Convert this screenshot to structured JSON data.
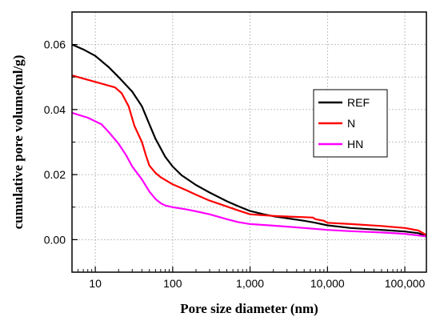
{
  "chart_data": {
    "type": "line",
    "title": "",
    "xlabel": "Pore size diameter (nm)",
    "ylabel": "cumulative pore volume(ml/g)",
    "x_scale": "log",
    "xlim": [
      5,
      190000
    ],
    "ylim": [
      -0.01,
      0.07
    ],
    "x_ticks": [
      {
        "value": 10,
        "label": "10"
      },
      {
        "value": 100,
        "label": "100"
      },
      {
        "value": 1000,
        "label": "1,000"
      },
      {
        "value": 10000,
        "label": "10,000"
      },
      {
        "value": 100000,
        "label": "100,000"
      }
    ],
    "y_ticks": [
      {
        "value": 0.0,
        "label": "0.00"
      },
      {
        "value": 0.02,
        "label": "0.02"
      },
      {
        "value": 0.04,
        "label": "0.04"
      },
      {
        "value": 0.06,
        "label": "0.06"
      }
    ],
    "grid": true,
    "legend_position": "right",
    "series": [
      {
        "name": "REF",
        "color": "#000000",
        "points": [
          [
            5,
            0.06
          ],
          [
            7,
            0.0585
          ],
          [
            10,
            0.0565
          ],
          [
            15,
            0.053
          ],
          [
            20,
            0.05
          ],
          [
            30,
            0.0455
          ],
          [
            40,
            0.041
          ],
          [
            50,
            0.0355
          ],
          [
            60,
            0.031
          ],
          [
            80,
            0.0255
          ],
          [
            100,
            0.0225
          ],
          [
            130,
            0.0198
          ],
          [
            200,
            0.0168
          ],
          [
            300,
            0.0145
          ],
          [
            500,
            0.0118
          ],
          [
            700,
            0.0103
          ],
          [
            1000,
            0.0088
          ],
          [
            1500,
            0.0078
          ],
          [
            2000,
            0.0072
          ],
          [
            3000,
            0.0066
          ],
          [
            5000,
            0.0058
          ],
          [
            7000,
            0.0052
          ],
          [
            10000,
            0.0044
          ],
          [
            20000,
            0.0036
          ],
          [
            50000,
            0.003
          ],
          [
            100000,
            0.0025
          ],
          [
            150000,
            0.002
          ],
          [
            190000,
            0.001
          ]
        ]
      },
      {
        "name": "N",
        "color": "#ff0000",
        "points": [
          [
            5,
            0.0505
          ],
          [
            10,
            0.0485
          ],
          [
            18,
            0.0468
          ],
          [
            22,
            0.045
          ],
          [
            27,
            0.041
          ],
          [
            32,
            0.035
          ],
          [
            40,
            0.03
          ],
          [
            45,
            0.026
          ],
          [
            50,
            0.0228
          ],
          [
            60,
            0.0205
          ],
          [
            70,
            0.0192
          ],
          [
            100,
            0.017
          ],
          [
            150,
            0.0152
          ],
          [
            200,
            0.0138
          ],
          [
            300,
            0.012
          ],
          [
            500,
            0.0102
          ],
          [
            700,
            0.009
          ],
          [
            1000,
            0.0078
          ],
          [
            1500,
            0.0075
          ],
          [
            2000,
            0.0073
          ],
          [
            3000,
            0.0071
          ],
          [
            5000,
            0.0069
          ],
          [
            6500,
            0.0068
          ],
          [
            7000,
            0.0063
          ],
          [
            9000,
            0.0058
          ],
          [
            10000,
            0.0052
          ],
          [
            20000,
            0.0048
          ],
          [
            50000,
            0.0042
          ],
          [
            100000,
            0.0036
          ],
          [
            150000,
            0.0028
          ],
          [
            190000,
            0.0014
          ]
        ]
      },
      {
        "name": "HN",
        "color": "#ff00ff",
        "points": [
          [
            5,
            0.039
          ],
          [
            8,
            0.0375
          ],
          [
            12,
            0.0355
          ],
          [
            15,
            0.033
          ],
          [
            20,
            0.0295
          ],
          [
            25,
            0.026
          ],
          [
            30,
            0.0225
          ],
          [
            40,
            0.0185
          ],
          [
            50,
            0.0148
          ],
          [
            60,
            0.0125
          ],
          [
            70,
            0.0112
          ],
          [
            80,
            0.0105
          ],
          [
            100,
            0.01
          ],
          [
            150,
            0.0093
          ],
          [
            200,
            0.0087
          ],
          [
            300,
            0.0078
          ],
          [
            500,
            0.0063
          ],
          [
            700,
            0.0054
          ],
          [
            1000,
            0.0048
          ],
          [
            2000,
            0.0043
          ],
          [
            3000,
            0.004
          ],
          [
            5000,
            0.0036
          ],
          [
            10000,
            0.003
          ],
          [
            20000,
            0.0026
          ],
          [
            50000,
            0.0022
          ],
          [
            100000,
            0.0018
          ],
          [
            190000,
            0.001
          ]
        ]
      }
    ]
  }
}
